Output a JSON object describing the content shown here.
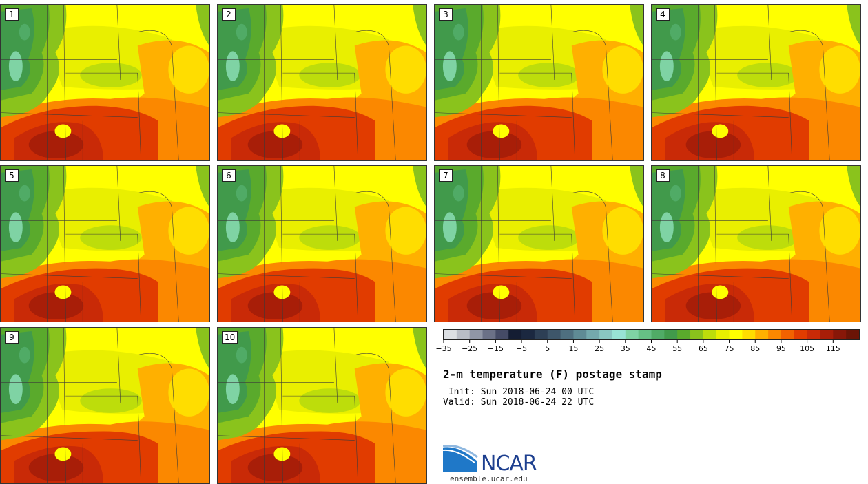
{
  "panels": [
    {
      "label": "1"
    },
    {
      "label": "2"
    },
    {
      "label": "3"
    },
    {
      "label": "4"
    },
    {
      "label": "5"
    },
    {
      "label": "6"
    },
    {
      "label": "7"
    },
    {
      "label": "8"
    },
    {
      "label": "9"
    },
    {
      "label": "10"
    }
  ],
  "colorbar": {
    "min": -35,
    "max": 125,
    "step": 5,
    "tick_labels": [
      "−35",
      "−25",
      "−15",
      "−5",
      "5",
      "15",
      "25",
      "35",
      "45",
      "55",
      "65",
      "75",
      "85",
      "95",
      "105",
      "115"
    ],
    "colors": [
      "#dcdfe3",
      "#b9bdc6",
      "#9096a6",
      "#6b7187",
      "#454b66",
      "#141d33",
      "#1b2840",
      "#2d3f55",
      "#3e566a",
      "#4e6f7f",
      "#5f8b95",
      "#74a9ad",
      "#89c6c2",
      "#98e3d5",
      "#7fd3a4",
      "#66bf85",
      "#50ab66",
      "#419a4b",
      "#5aaa2c",
      "#8ac31c",
      "#bddd0b",
      "#e9ef00",
      "#ffff00",
      "#ffdd00",
      "#ffb000",
      "#fb8800",
      "#f26200",
      "#e13c00",
      "#c92a07",
      "#a81e08",
      "#881708",
      "#6b1406"
    ]
  },
  "title": "2-m temperature (F) postage stamp",
  "init": " Init: Sun 2018-06-24 00 UTC",
  "valid": "Valid: Sun 2018-06-24 22 UTC",
  "logo": {
    "text": "NCAR",
    "color": "#1d3f8f"
  },
  "site": "ensemble.ucar.edu"
}
